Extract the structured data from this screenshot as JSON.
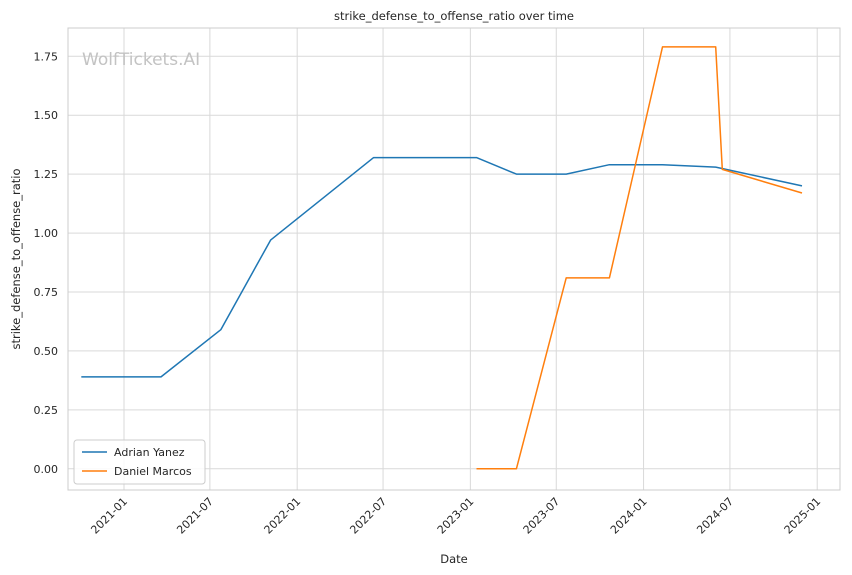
{
  "chart_data": {
    "type": "line",
    "title": "strike_defense_to_offense_ratio over time",
    "xlabel": "Date",
    "ylabel": "strike_defense_to_offense_ratio",
    "watermark": "WolfTickets.AI",
    "xlim": [
      "2020-09-05",
      "2025-02-18"
    ],
    "ylim": [
      -0.09,
      1.87
    ],
    "x_ticks": [
      "2021-01",
      "2021-07",
      "2022-01",
      "2022-07",
      "2023-01",
      "2023-07",
      "2024-01",
      "2024-07",
      "2025-01"
    ],
    "x_tick_dates": [
      "2021-01-01",
      "2021-07-01",
      "2022-01-01",
      "2022-07-01",
      "2023-01-01",
      "2023-07-01",
      "2024-01-01",
      "2024-07-01",
      "2025-01-01"
    ],
    "y_ticks": [
      "0.00",
      "0.25",
      "0.50",
      "0.75",
      "1.00",
      "1.25",
      "1.50",
      "1.75"
    ],
    "y_tick_values": [
      0,
      0.25,
      0.5,
      0.75,
      1.0,
      1.25,
      1.5,
      1.75
    ],
    "grid": true,
    "legend_position": "lower-left",
    "series": [
      {
        "name": "Adrian Yanez",
        "color": "#1f77b4",
        "x": [
          "2020-10-03",
          "2021-03-20",
          "2021-07-24",
          "2021-11-06",
          "2022-06-11",
          "2023-01-14",
          "2023-04-08",
          "2023-07-22",
          "2023-10-21",
          "2024-02-10",
          "2024-06-01",
          "2024-11-30"
        ],
        "y": [
          0.39,
          0.39,
          0.59,
          0.97,
          1.32,
          1.32,
          1.25,
          1.25,
          1.29,
          1.29,
          1.28,
          1.2
        ]
      },
      {
        "name": "Daniel Marcos",
        "color": "#ff7f0e",
        "x": [
          "2023-01-14",
          "2023-04-08",
          "2023-07-22",
          "2023-10-21",
          "2024-02-10",
          "2024-06-01",
          "2024-06-15",
          "2024-11-30"
        ],
        "y": [
          0.0,
          0.0,
          0.81,
          0.81,
          1.79,
          1.79,
          1.27,
          1.17
        ]
      }
    ]
  }
}
